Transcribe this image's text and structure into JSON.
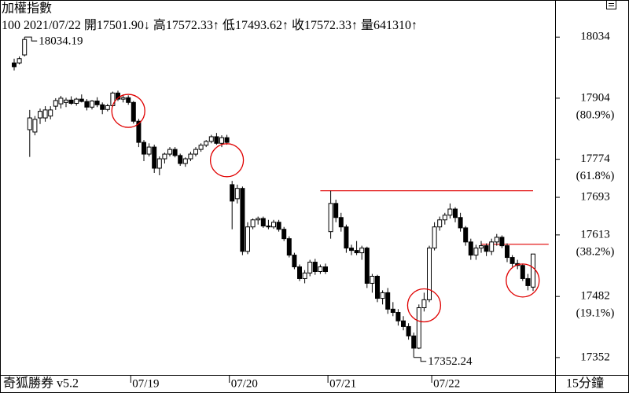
{
  "chart_data": {
    "type": "candlestick",
    "title": "加權指數",
    "info": {
      "period": 100,
      "date": "2021/07/22",
      "fields": [
        {
          "label": "開",
          "value": "17501.90",
          "arrow": "↓"
        },
        {
          "label": "高",
          "value": "17572.33",
          "arrow": "↑"
        },
        {
          "label": "低",
          "value": "17493.62",
          "arrow": "↑"
        },
        {
          "label": "收",
          "value": "17572.33",
          "arrow": "↑"
        },
        {
          "label": "量",
          "value": "641310",
          "arrow": "↑"
        }
      ]
    },
    "categories": [
      null,
      null,
      null,
      null,
      null,
      null,
      null,
      null,
      null,
      null,
      null,
      null,
      null,
      null,
      null,
      null,
      null,
      null,
      null,
      null,
      null,
      null,
      null,
      "07/19",
      null,
      null,
      null,
      null,
      null,
      null,
      null,
      null,
      null,
      null,
      null,
      null,
      null,
      null,
      null,
      null,
      null,
      null,
      "07/20",
      null,
      null,
      null,
      null,
      null,
      null,
      null,
      null,
      null,
      null,
      null,
      null,
      null,
      null,
      null,
      null,
      null,
      null,
      "07/21",
      null,
      null,
      null,
      null,
      null,
      null,
      null,
      null,
      null,
      null,
      null,
      null,
      null,
      null,
      null,
      null,
      null,
      null,
      null,
      "07/22",
      null,
      null,
      null,
      null,
      null,
      null,
      null,
      null,
      null,
      null,
      null,
      null,
      null,
      null,
      null,
      null,
      null,
      null,
      null
    ],
    "open": [
      17979,
      17979,
      17996,
      17837,
      17832,
      17862,
      17862,
      17866,
      17887,
      17892,
      17895,
      17900,
      17893,
      17902,
      17897,
      17885,
      17898,
      17890,
      17880,
      17888,
      17915,
      17902,
      17905,
      17895,
      17855,
      17810,
      17785,
      17800,
      17755,
      17775,
      17785,
      17795,
      17782,
      17765,
      17775,
      17785,
      17795,
      17804,
      17812,
      17822,
      17808,
      17820,
      17720,
      17690,
      17712,
      17578,
      17630,
      17645,
      17648,
      17632,
      17630,
      17640,
      17625,
      17605,
      17570,
      17545,
      17520,
      17532,
      17555,
      17535,
      17545,
      17620,
      17680,
      17650,
      17630,
      17585,
      17580,
      17575,
      17585,
      17510,
      17525,
      17478,
      17490,
      17455,
      17448,
      17430,
      17418,
      17398,
      17372,
      17458,
      17475,
      17585,
      17630,
      17645,
      17655,
      17668,
      17650,
      17628,
      17598,
      17570,
      17585,
      17590,
      17578,
      17598,
      17608,
      17590,
      17565,
      17552,
      17548,
      17520,
      17501.9
    ],
    "high": [
      17988,
      17993,
      18034.19,
      17879,
      17866,
      17882,
      17887,
      17887,
      17904,
      17909,
      17905,
      17908,
      17905,
      17912,
      17902,
      17900,
      17906,
      17895,
      17892,
      17918,
      17920,
      17912,
      17910,
      17898,
      17860,
      17815,
      17808,
      17805,
      17780,
      17788,
      17800,
      17800,
      17786,
      17778,
      17790,
      17800,
      17808,
      17815,
      17826,
      17830,
      17825,
      17826,
      17728,
      17720,
      17716,
      17640,
      17648,
      17652,
      17652,
      17645,
      17645,
      17645,
      17630,
      17610,
      17575,
      17550,
      17538,
      17560,
      17562,
      17550,
      17552,
      17707,
      17688,
      17660,
      17635,
      17592,
      17600,
      17590,
      17588,
      17530,
      17528,
      17495,
      17500,
      17470,
      17455,
      17440,
      17425,
      17405,
      17465,
      17490,
      17590,
      17640,
      17652,
      17660,
      17680,
      17672,
      17660,
      17632,
      17605,
      17592,
      17600,
      17595,
      17605,
      17615,
      17612,
      17595,
      17570,
      17560,
      17552,
      17530,
      17572.33
    ],
    "low": [
      17963,
      17976,
      17993,
      17779,
      17825,
      17849,
      17854,
      17859,
      17879,
      17882,
      17885,
      17890,
      17888,
      17895,
      17878,
      17880,
      17885,
      17870,
      17876,
      17886,
      17898,
      17895,
      17890,
      17850,
      17800,
      17770,
      17780,
      17745,
      17740,
      17765,
      17780,
      17778,
      17760,
      17758,
      17770,
      17780,
      17790,
      17800,
      17808,
      17805,
      17800,
      17805,
      17625,
      17680,
      17570,
      17572,
      17625,
      17635,
      17628,
      17625,
      17626,
      17620,
      17600,
      17565,
      17540,
      17515,
      17510,
      17525,
      17528,
      17530,
      17530,
      17605,
      17640,
      17620,
      17575,
      17570,
      17570,
      17560,
      17500,
      17490,
      17470,
      17465,
      17445,
      17440,
      17420,
      17410,
      17390,
      17352.24,
      17370,
      17450,
      17470,
      17580,
      17622,
      17635,
      17648,
      17640,
      17620,
      17590,
      17560,
      17560,
      17575,
      17568,
      17570,
      17590,
      17585,
      17555,
      17545,
      17540,
      17515,
      17495,
      17493.62
    ],
    "close": [
      17971,
      17988,
      18029,
      17862,
      17859,
      17876,
      17879,
      17879,
      17899,
      17904,
      17900,
      17893,
      17902,
      17897,
      17885,
      17898,
      17890,
      17880,
      17888,
      17915,
      17902,
      17905,
      17895,
      17855,
      17810,
      17785,
      17800,
      17755,
      17775,
      17785,
      17795,
      17782,
      17765,
      17775,
      17785,
      17795,
      17804,
      17812,
      17822,
      17808,
      17820,
      17810,
      17685,
      17712,
      17578,
      17630,
      17645,
      17648,
      17632,
      17630,
      17640,
      17625,
      17605,
      17570,
      17545,
      17520,
      17532,
      17555,
      17535,
      17545,
      17535,
      17680,
      17650,
      17630,
      17585,
      17580,
      17575,
      17585,
      17510,
      17525,
      17478,
      17490,
      17455,
      17448,
      17430,
      17418,
      17398,
      17372,
      17458,
      17475,
      17585,
      17630,
      17645,
      17655,
      17668,
      17650,
      17628,
      17598,
      17570,
      17585,
      17590,
      17578,
      17598,
      17608,
      17590,
      17565,
      17552,
      17548,
      17520,
      17505,
      17572.33
    ],
    "ylim": [
      17315,
      18113
    ],
    "yticks": [
      18034,
      17904,
      17774,
      17693,
      17613,
      17482,
      17352
    ],
    "fib_labels": [
      {
        "value": 17904,
        "label": "(80.9%)"
      },
      {
        "value": 17774,
        "label": "(61.8%)"
      },
      {
        "value": 17613,
        "label": "(38.2%)"
      },
      {
        "value": 17482,
        "label": "(19.1%)"
      }
    ],
    "reference_lines": [
      {
        "value": 17707,
        "from": 59,
        "to": 100
      },
      {
        "value": 17593,
        "from": 90,
        "to": 103
      }
    ],
    "highlight_circles": [
      {
        "index": 22,
        "value": 17877
      },
      {
        "index": 41,
        "value": 17772
      },
      {
        "index": 79,
        "value": 17463
      },
      {
        "index": 98,
        "value": 17516
      }
    ],
    "marker_color": "#e00000",
    "software": "奇狐勝券 v5.2",
    "interval": "15分鐘"
  }
}
